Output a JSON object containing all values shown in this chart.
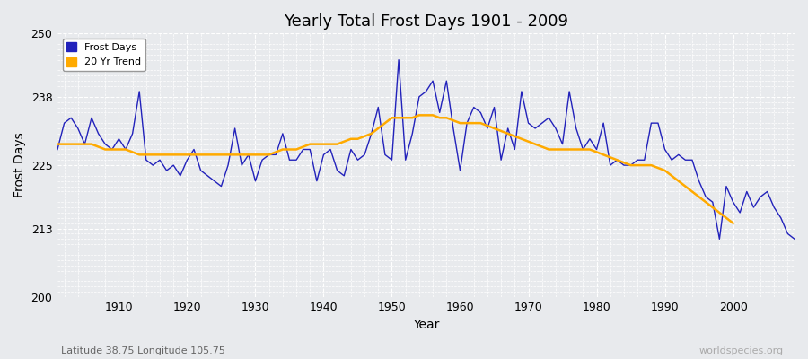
{
  "title": "Yearly Total Frost Days 1901 - 2009",
  "xlabel": "Year",
  "ylabel": "Frost Days",
  "subtitle": "Latitude 38.75 Longitude 105.75",
  "watermark": "worldspecies.org",
  "ylim": [
    200,
    250
  ],
  "xlim": [
    1901,
    2009
  ],
  "yticks": [
    200,
    213,
    225,
    238,
    250
  ],
  "xticks": [
    1910,
    1920,
    1930,
    1940,
    1950,
    1960,
    1970,
    1980,
    1990,
    2000
  ],
  "bg_color": "#e8eaed",
  "grid_color": "#ffffff",
  "line_color": "#2222bb",
  "trend_color": "#ffaa00",
  "legend_frost": "Frost Days",
  "legend_trend": "20 Yr Trend",
  "frost_days": [
    228,
    233,
    234,
    232,
    229,
    234,
    231,
    229,
    228,
    230,
    228,
    231,
    239,
    226,
    225,
    226,
    224,
    225,
    223,
    226,
    228,
    224,
    223,
    222,
    221,
    225,
    232,
    225,
    227,
    222,
    226,
    227,
    227,
    231,
    226,
    226,
    228,
    228,
    222,
    227,
    228,
    224,
    223,
    228,
    226,
    227,
    231,
    236,
    227,
    226,
    245,
    226,
    231,
    238,
    239,
    241,
    235,
    241,
    232,
    224,
    233,
    236,
    235,
    232,
    236,
    226,
    232,
    228,
    239,
    233,
    232,
    233,
    234,
    232,
    229,
    239,
    232,
    228,
    230,
    228,
    233,
    225,
    226,
    225,
    225,
    226,
    226,
    233,
    233,
    228,
    226,
    227,
    226,
    226,
    222,
    219,
    218,
    211,
    221,
    218,
    216,
    220,
    217,
    219,
    220,
    217,
    215,
    212,
    211
  ],
  "trend_days": [
    229.0,
    229.0,
    229.0,
    229.0,
    229.0,
    229.0,
    228.5,
    228.0,
    228.0,
    228.0,
    228.0,
    227.5,
    227.0,
    227.0,
    227.0,
    227.0,
    227.0,
    227.0,
    227.0,
    227.0,
    227.0,
    227.0,
    227.0,
    227.0,
    227.0,
    227.0,
    227.0,
    227.0,
    227.0,
    227.0,
    227.0,
    227.0,
    227.5,
    228.0,
    228.0,
    228.0,
    228.5,
    229.0,
    229.0,
    229.0,
    229.0,
    229.0,
    229.5,
    230.0,
    230.0,
    230.5,
    231.0,
    232.0,
    233.0,
    234.0,
    234.0,
    234.0,
    234.0,
    234.5,
    234.5,
    234.5,
    234.0,
    234.0,
    233.5,
    233.0,
    233.0,
    233.0,
    233.0,
    232.5,
    232.0,
    231.5,
    231.0,
    230.5,
    230.0,
    229.5,
    229.0,
    228.5,
    228.0,
    228.0,
    228.0,
    228.0,
    228.0,
    228.0,
    228.0,
    227.5,
    227.0,
    226.5,
    226.0,
    225.5,
    225.0,
    225.0,
    225.0,
    225.0,
    224.5,
    224.0,
    223.0,
    222.0,
    221.0,
    220.0,
    219.0,
    218.0,
    217.0,
    216.0,
    215.0,
    214.0
  ]
}
